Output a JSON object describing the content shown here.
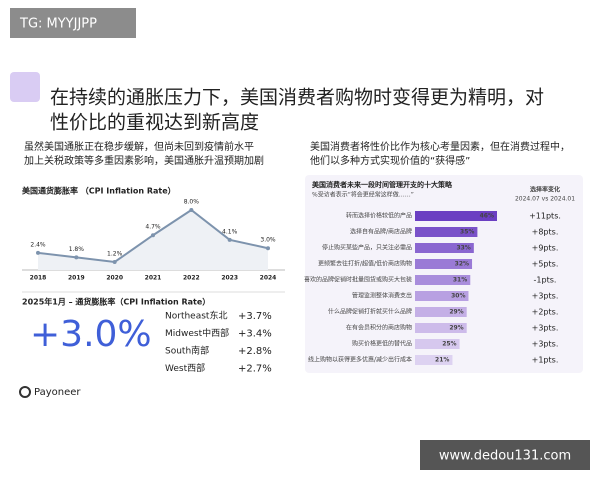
{
  "watermark": "TG: MYYJJPP",
  "title_lines": [
    "在持续的通胀压力下，美国消费者购物时变得更为精明，对",
    "性价比的重视达到新高度"
  ],
  "left_text": [
    "虽然美国通胀正在稳步缓解，但尚未回到疫情前水平",
    "加上关税政策等多重因素影响，美国通胀升温预期加剧"
  ],
  "right_text": [
    "美国消费者将性价比作为核心考量因素，但在消费过程中，",
    "他们以多种方式实现价值的“获得感”"
  ],
  "jan2025": {
    "title": "2025年1月 – 通货膨胀率（CPI Inflation Rate）",
    "headline": "+3.0%",
    "regions": [
      [
        "Northeast东北",
        "+3.7%"
      ],
      [
        "Midwest中西部",
        "+3.4%"
      ],
      [
        "South南部",
        "+2.8%"
      ],
      [
        "West西部",
        "+2.7%"
      ]
    ]
  },
  "chart_data": [
    {
      "type": "line",
      "title": "美国通货膨胀率 （CPI Inflation Rate）",
      "x": [
        "2018",
        "2019",
        "2020",
        "2021",
        "2022",
        "2023",
        "2024"
      ],
      "values": [
        2.4,
        1.8,
        1.2,
        4.7,
        8.0,
        4.1,
        3.0
      ],
      "value_labels": [
        "2.4%",
        "1.8%",
        "1.2%",
        "4.7%",
        "8.0%",
        "4.1%",
        "3.0%"
      ],
      "color": "#7d93ad"
    },
    {
      "type": "hbar",
      "title": "美国消费者未来一段时间管理开支的十大策略",
      "subtitle": "%受访者表示“将会更经常这样做……”",
      "change_header": [
        "选择率变化",
        "2024.07 vs 2024.01"
      ],
      "categories": [
        "转而选择价格较低的产品",
        "选择自有品牌/商店品牌",
        "停止购买某些产品，只关注必需品",
        "更频繁去往打折/超值/低价商店购物",
        "喜欢的品牌促销时批量囤货或购买大包装",
        "管理监测整体消费支出",
        "什么品牌促销打折就买什么品牌",
        "在有会员积分的商店购物",
        "购买价格更低的替代品",
        "线上购物以获得更多优惠/减少出行成本"
      ],
      "values": [
        46,
        35,
        33,
        32,
        31,
        30,
        29,
        29,
        25,
        21
      ],
      "value_labels": [
        "46%",
        "35%",
        "33%",
        "32%",
        "31%",
        "30%",
        "29%",
        "29%",
        "25%",
        "21%"
      ],
      "changes": [
        "+11pts.",
        "+8pts.",
        "+9pts.",
        "+5pts.",
        "-1pts.",
        "+3pts.",
        "+2pts.",
        "+3pts.",
        "+3pts.",
        "+1pts."
      ],
      "colors": [
        "#6b3fc2",
        "#7a52c9",
        "#8a66d0",
        "#9a7ad6",
        "#a98ddc",
        "#b8a0e2",
        "#c4afe6",
        "#cdbbea",
        "#d6c8ee",
        "#ddd2f1"
      ]
    }
  ],
  "logo": "Payoneer",
  "site": "www.dedou131.com"
}
